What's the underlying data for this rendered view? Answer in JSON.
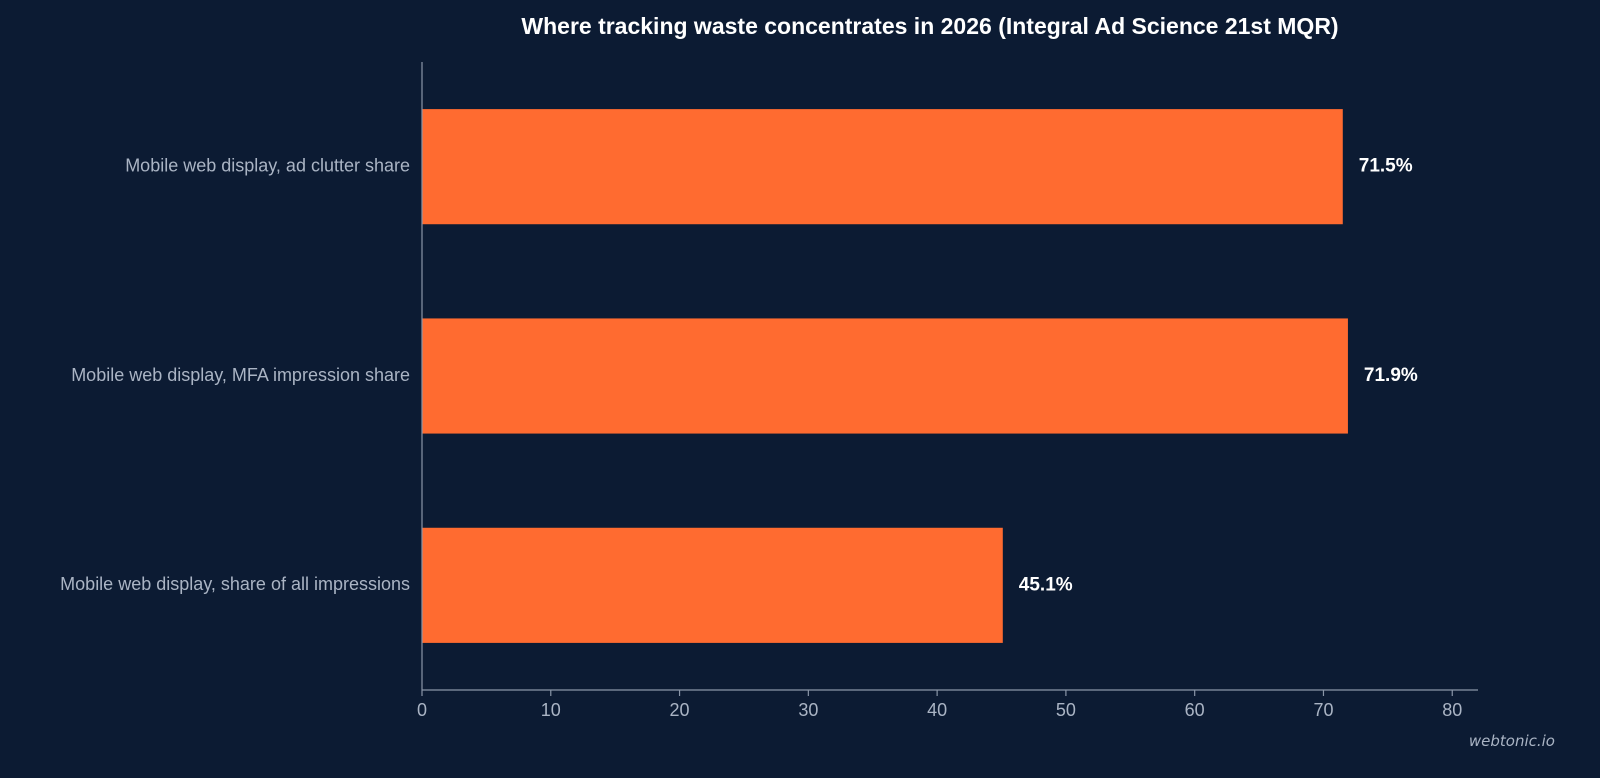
{
  "chart_data": {
    "type": "bar",
    "orientation": "horizontal",
    "title": "Where tracking waste concentrates in 2026 (Integral Ad Science 21st MQR)",
    "categories": [
      "Mobile web display, ad clutter share",
      "Mobile web display, MFA impression share",
      "Mobile web display, share of all impressions"
    ],
    "values": [
      71.5,
      71.9,
      45.1
    ],
    "data_labels": [
      "71.5%",
      "71.9%",
      "45.1%"
    ],
    "xlim": [
      0,
      82
    ],
    "xticks": [
      "0",
      "10",
      "20",
      "30",
      "40",
      "50",
      "60",
      "70",
      "80"
    ],
    "xlabel": "",
    "ylabel": "",
    "grid": false,
    "bar_color": "#ff6b30"
  },
  "watermark": "webtonic.io"
}
